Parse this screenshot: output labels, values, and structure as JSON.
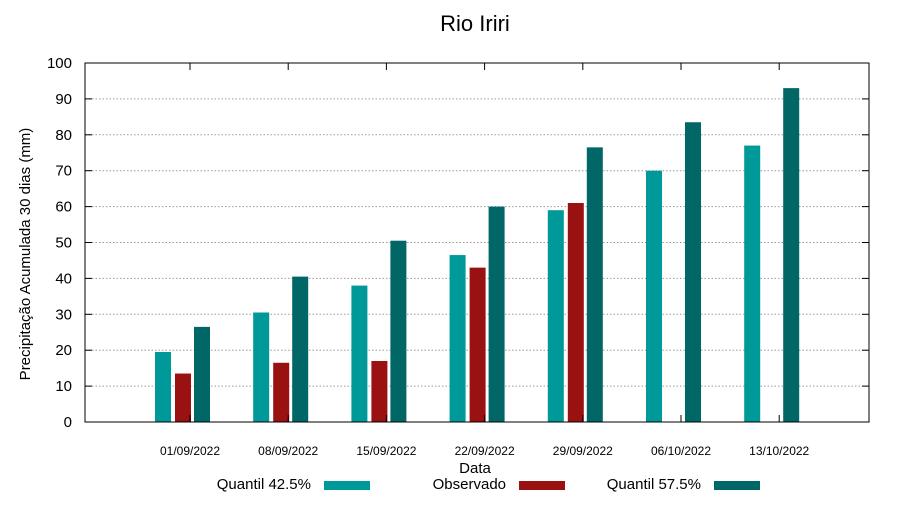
{
  "chart_data": {
    "type": "bar",
    "title": "Rio Iriri",
    "xlabel": "Data",
    "ylabel": "Precipitação Acumulada 30 dias (mm)",
    "ylim": [
      0,
      100
    ],
    "yticks": [
      0,
      10,
      20,
      30,
      40,
      50,
      60,
      70,
      80,
      90,
      100
    ],
    "grid": true,
    "legend_position": "bottom",
    "categories": [
      "01/09/2022",
      "08/09/2022",
      "15/09/2022",
      "22/09/2022",
      "29/09/2022",
      "06/10/2022",
      "13/10/2022"
    ],
    "series": [
      {
        "name": "Quantil 42.5%",
        "color": "#009999",
        "values": [
          19.5,
          30.5,
          38,
          46.5,
          59,
          70,
          77
        ]
      },
      {
        "name": "Observado",
        "color": "#991111",
        "values": [
          13.5,
          16.5,
          17,
          43,
          61,
          null,
          null
        ]
      },
      {
        "name": "Quantil 57.5%",
        "color": "#006666",
        "values": [
          26.5,
          40.5,
          50.5,
          60,
          76.5,
          83.5,
          93
        ]
      }
    ]
  }
}
